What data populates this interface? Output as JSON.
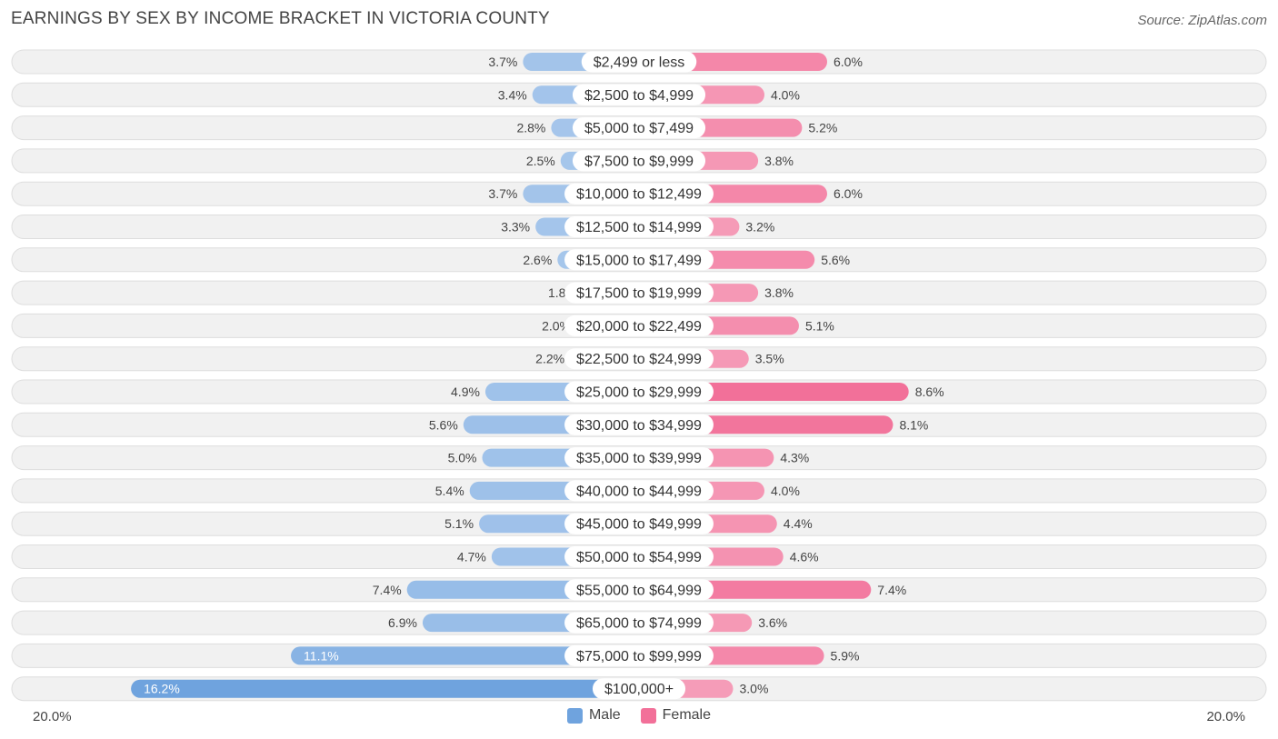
{
  "title": "EARNINGS BY SEX BY INCOME BRACKET IN VICTORIA COUNTY",
  "source": "Source: ZipAtlas.com",
  "colors": {
    "male": "#a9c8ec",
    "male_strong": "#6fa3de",
    "female": "#f6a8c0",
    "female_strong": "#f27099",
    "row_bg": "#f1f1f1",
    "row_border": "#dedede"
  },
  "chart_data": {
    "type": "bar",
    "orientation": "horizontal-diverging",
    "title": "EARNINGS BY SEX BY INCOME BRACKET IN VICTORIA COUNTY",
    "xlim": [
      -20.0,
      20.0
    ],
    "axis_left_label": "20.0%",
    "axis_right_label": "20.0%",
    "legend": [
      "Male",
      "Female"
    ],
    "categories": [
      "$2,499 or less",
      "$2,500 to $4,999",
      "$5,000 to $7,499",
      "$7,500 to $9,999",
      "$10,000 to $12,499",
      "$12,500 to $14,999",
      "$15,000 to $17,499",
      "$17,500 to $19,999",
      "$20,000 to $22,499",
      "$22,500 to $24,999",
      "$25,000 to $29,999",
      "$30,000 to $34,999",
      "$35,000 to $39,999",
      "$40,000 to $44,999",
      "$45,000 to $49,999",
      "$50,000 to $54,999",
      "$55,000 to $64,999",
      "$65,000 to $74,999",
      "$75,000 to $99,999",
      "$100,000+"
    ],
    "series": [
      {
        "name": "Male",
        "values": [
          3.7,
          3.4,
          2.8,
          2.5,
          3.7,
          3.3,
          2.6,
          1.8,
          2.0,
          2.2,
          4.9,
          5.6,
          5.0,
          5.4,
          5.1,
          4.7,
          7.4,
          6.9,
          11.1,
          16.2
        ],
        "labels": [
          "3.7%",
          "3.4%",
          "2.8%",
          "2.5%",
          "3.7%",
          "3.3%",
          "2.6%",
          "1.8%",
          "2.0%",
          "2.2%",
          "4.9%",
          "5.6%",
          "5.0%",
          "5.4%",
          "5.1%",
          "4.7%",
          "7.4%",
          "6.9%",
          "11.1%",
          "16.2%"
        ]
      },
      {
        "name": "Female",
        "values": [
          6.0,
          4.0,
          5.2,
          3.8,
          6.0,
          3.2,
          5.6,
          3.8,
          5.1,
          3.5,
          8.6,
          8.1,
          4.3,
          4.0,
          4.4,
          4.6,
          7.4,
          3.6,
          5.9,
          3.0
        ],
        "labels": [
          "6.0%",
          "4.0%",
          "5.2%",
          "3.8%",
          "6.0%",
          "3.2%",
          "5.6%",
          "3.8%",
          "5.1%",
          "3.5%",
          "8.6%",
          "8.1%",
          "4.3%",
          "4.0%",
          "4.4%",
          "4.6%",
          "7.4%",
          "3.6%",
          "5.9%",
          "3.0%"
        ]
      }
    ]
  }
}
